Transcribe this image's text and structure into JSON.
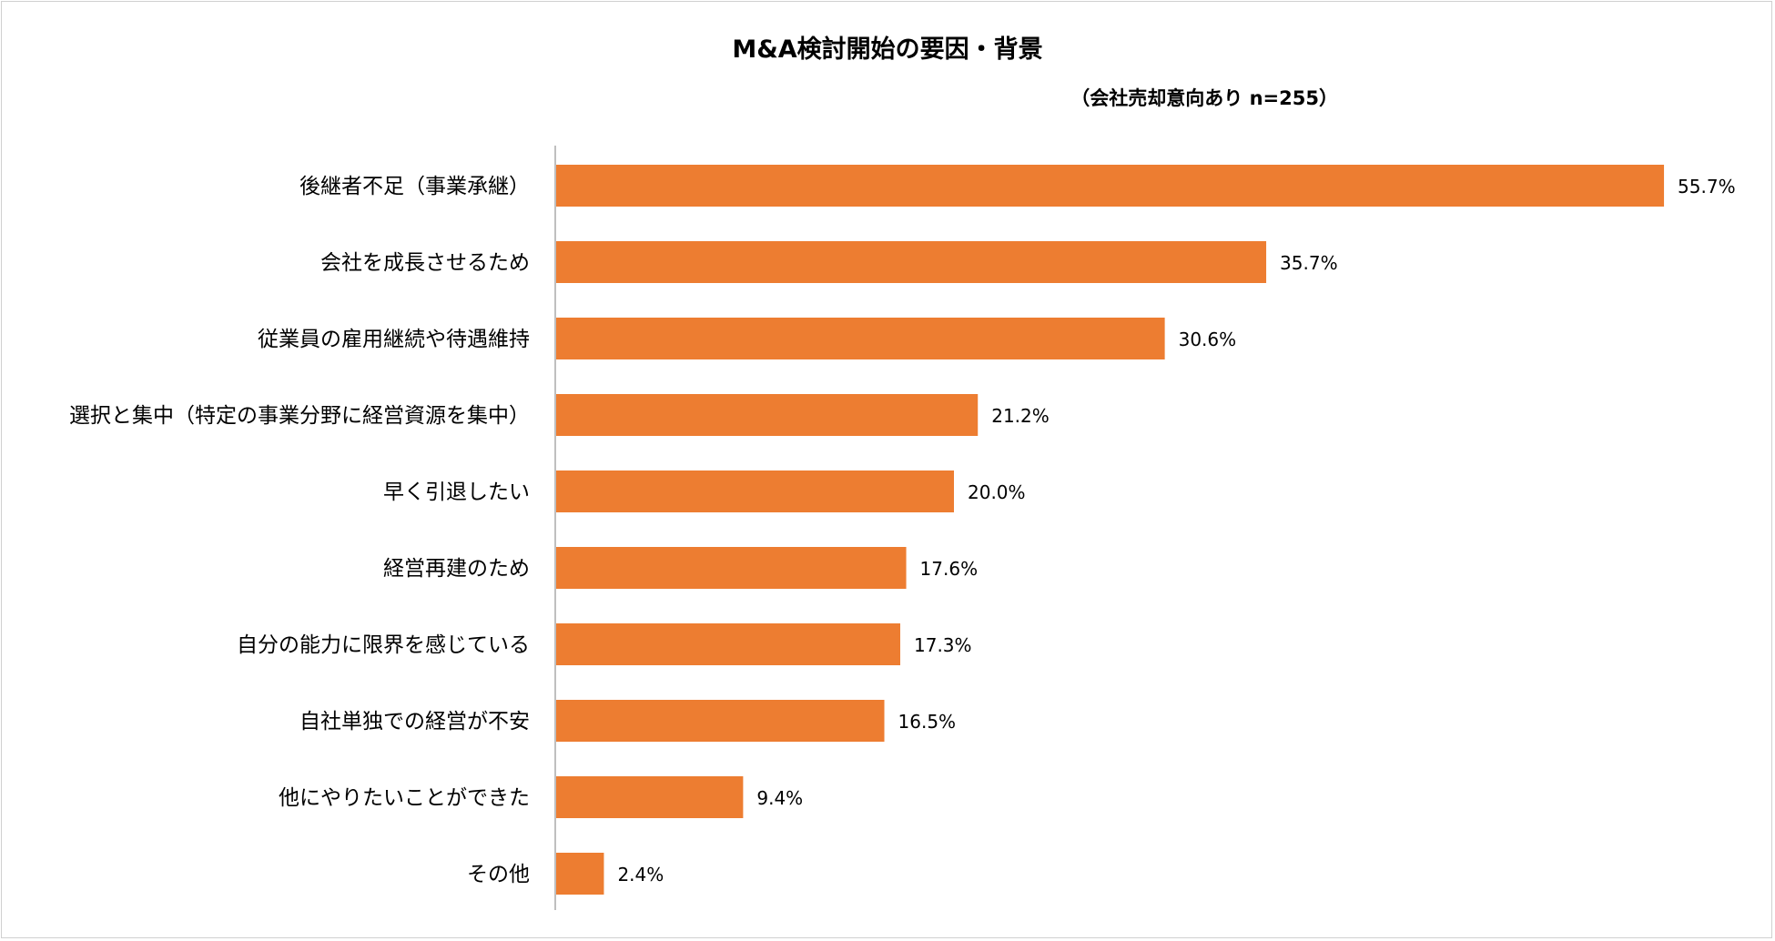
{
  "chart_data": {
    "type": "bar",
    "orientation": "horizontal",
    "title": "M&A検討開始の要因・背景",
    "subtitle": "（会社売却意向あり n=255）",
    "categories": [
      "後継者不足（事業承継）",
      "会社を成長させるため",
      "従業員の雇用継続や待遇維持",
      "選択と集中（特定の事業分野に経営資源を集中）",
      "早く引退したい",
      "経営再建のため",
      "自分の能力に限界を感じている",
      "自社単独での経営が不安",
      "他にやりたいことができた",
      "その他"
    ],
    "values": [
      55.7,
      35.7,
      30.6,
      21.2,
      20.0,
      17.6,
      17.3,
      16.5,
      9.4,
      2.4
    ],
    "value_labels": [
      "55.7%",
      "35.7%",
      "30.6%",
      "21.2%",
      "20.0%",
      "17.6%",
      "17.3%",
      "16.5%",
      "9.4%",
      "2.4%"
    ],
    "unit": "%",
    "bar_color": "#ed7d31",
    "axis_color": "#bfbfbf",
    "grid": false,
    "legend": "none"
  }
}
